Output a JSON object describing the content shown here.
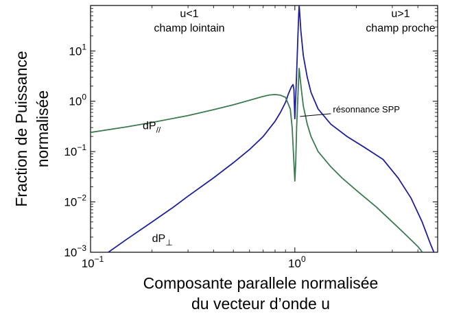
{
  "chart_data": {
    "type": "line",
    "xscale": "log",
    "yscale": "log",
    "xlim": [
      0.1,
      5
    ],
    "ylim": [
      0.001,
      80
    ],
    "grid": false,
    "xlabel": [
      "Composante parallele normalisée",
      "du vecteur d’onde u"
    ],
    "ylabel": [
      "Fraction de Puissance",
      "normalisée"
    ],
    "x_ticks": [
      {
        "base": "10",
        "exp": "−1",
        "value": 0.1
      },
      {
        "base": "10",
        "exp": "0",
        "value": 1
      }
    ],
    "y_ticks": [
      {
        "base": "10",
        "exp": "−3",
        "value": 0.001
      },
      {
        "base": "10",
        "exp": "−2",
        "value": 0.01
      },
      {
        "base": "10",
        "exp": "−1",
        "value": 0.1
      },
      {
        "base": "10",
        "exp": "0",
        "value": 1
      },
      {
        "base": "10",
        "exp": "1",
        "value": 10
      }
    ],
    "regions": [
      {
        "lines": [
          "u<1",
          "champ lointain"
        ],
        "side": "left"
      },
      {
        "lines": [
          "u>1",
          "champ proche"
        ],
        "side": "right"
      }
    ],
    "annotations": [
      {
        "text": "résonnance SPP",
        "x": 1.06,
        "y": 0.5
      }
    ],
    "series": [
      {
        "name": "dP⊥",
        "name_base": "dP",
        "name_sub": "⊥",
        "color": "#1c1f9a",
        "label_at": [
          0.2,
          0.0016
        ],
        "points": [
          [
            0.1,
            0.00055
          ],
          [
            0.12,
            0.00095
          ],
          [
            0.15,
            0.0018
          ],
          [
            0.2,
            0.004
          ],
          [
            0.25,
            0.0075
          ],
          [
            0.3,
            0.013
          ],
          [
            0.4,
            0.03
          ],
          [
            0.5,
            0.06
          ],
          [
            0.6,
            0.11
          ],
          [
            0.7,
            0.2
          ],
          [
            0.8,
            0.4
          ],
          [
            0.85,
            0.6
          ],
          [
            0.9,
            0.95
          ],
          [
            0.93,
            1.4
          ],
          [
            0.96,
            1.9
          ],
          [
            0.98,
            2.15
          ],
          [
            0.99,
            1.7
          ],
          [
            0.995,
            0.8
          ],
          [
            1.0,
            0.45
          ],
          [
            1.01,
            1.2
          ],
          [
            1.02,
            3.5
          ],
          [
            1.035,
            20
          ],
          [
            1.045,
            55
          ],
          [
            1.05,
            80
          ],
          [
            1.055,
            60
          ],
          [
            1.07,
            25
          ],
          [
            1.1,
            8
          ],
          [
            1.15,
            3
          ],
          [
            1.2,
            1.5
          ],
          [
            1.3,
            0.7
          ],
          [
            1.5,
            0.35
          ],
          [
            1.8,
            0.2
          ],
          [
            2.2,
            0.12
          ],
          [
            2.7,
            0.07
          ],
          [
            3.2,
            0.03
          ],
          [
            3.7,
            0.012
          ],
          [
            4.2,
            0.004
          ],
          [
            4.6,
            0.0015
          ],
          [
            4.9,
            0.0008
          ]
        ]
      },
      {
        "name": "dP//",
        "name_base": "dP",
        "name_sub": "//",
        "color": "#3a7a4e",
        "label_at": [
          0.18,
          0.28
        ],
        "points": [
          [
            0.1,
            0.24
          ],
          [
            0.15,
            0.31
          ],
          [
            0.2,
            0.38
          ],
          [
            0.3,
            0.52
          ],
          [
            0.4,
            0.68
          ],
          [
            0.5,
            0.85
          ],
          [
            0.6,
            1.05
          ],
          [
            0.7,
            1.25
          ],
          [
            0.75,
            1.33
          ],
          [
            0.8,
            1.36
          ],
          [
            0.85,
            1.32
          ],
          [
            0.9,
            1.2
          ],
          [
            0.95,
            0.7
          ],
          [
            0.97,
            0.3
          ],
          [
            0.99,
            0.06
          ],
          [
            1.0,
            0.026
          ],
          [
            1.01,
            0.06
          ],
          [
            1.02,
            0.3
          ],
          [
            1.04,
            2.0
          ],
          [
            1.05,
            4.5
          ],
          [
            1.06,
            3.0
          ],
          [
            1.08,
            1.5
          ],
          [
            1.1,
            0.8
          ],
          [
            1.15,
            0.35
          ],
          [
            1.2,
            0.2
          ],
          [
            1.3,
            0.1
          ],
          [
            1.5,
            0.05
          ],
          [
            1.7,
            0.03
          ],
          [
            2.0,
            0.017
          ],
          [
            2.5,
            0.008
          ],
          [
            3.0,
            0.004
          ],
          [
            3.5,
            0.0022
          ],
          [
            4.0,
            0.0013
          ],
          [
            4.4,
            0.0008
          ]
        ]
      }
    ]
  }
}
